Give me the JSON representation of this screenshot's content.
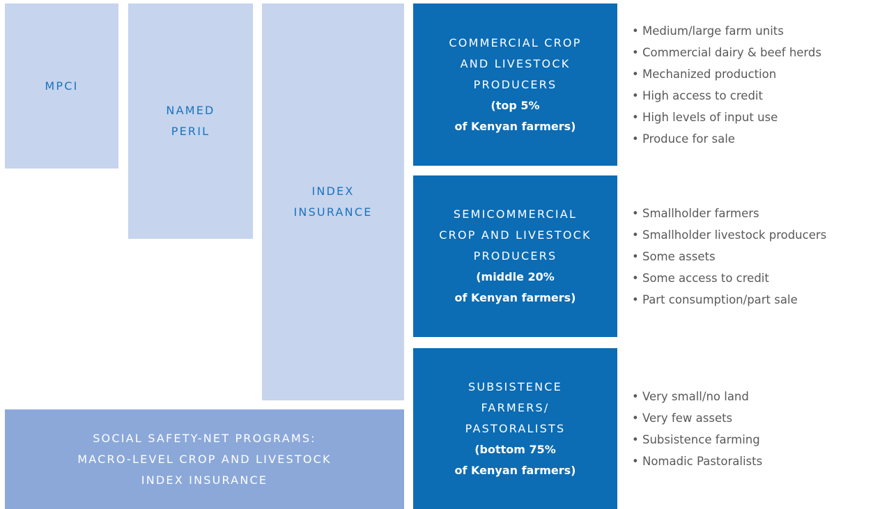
{
  "products": [
    {
      "lines": [
        "MPCI"
      ]
    },
    {
      "lines": [
        "NAMED",
        "PERIL"
      ]
    },
    {
      "lines": [
        "INDEX",
        "INSURANCE"
      ]
    }
  ],
  "safety_net": {
    "lines": [
      "SOCIAL SAFETY-NET PROGRAMS:",
      "MACRO-LEVEL CROP AND LIVESTOCK",
      "INDEX INSURANCE"
    ]
  },
  "segments": [
    {
      "title": [
        "COMMERCIAL CROP",
        "AND LIVESTOCK",
        "PRODUCERS"
      ],
      "share": [
        "(top 5%",
        "of Kenyan farmers)"
      ],
      "bullets": [
        "Medium/large farm units",
        "Commercial dairy & beef herds",
        "Mechanized production",
        "High access to credit",
        "High levels of input use",
        "Produce for sale"
      ]
    },
    {
      "title": [
        "SEMICOMMERCIAL",
        "CROP AND LIVESTOCK",
        "PRODUCERS"
      ],
      "share": [
        "(middle 20%",
        "of Kenyan farmers)"
      ],
      "bullets": [
        "Smallholder farmers",
        "Smallholder livestock producers",
        "Some assets",
        "Some access to credit",
        "Part consumption/part sale"
      ]
    },
    {
      "title": [
        "SUBSISTENCE",
        "FARMERS/",
        "PASTORALISTS"
      ],
      "share": [
        "(bottom 75%",
        "of Kenyan farmers)"
      ],
      "bullets": [
        "Very small/no land",
        "Very few assets",
        "Subsistence farming",
        "Nomadic Pastoralists"
      ]
    }
  ]
}
